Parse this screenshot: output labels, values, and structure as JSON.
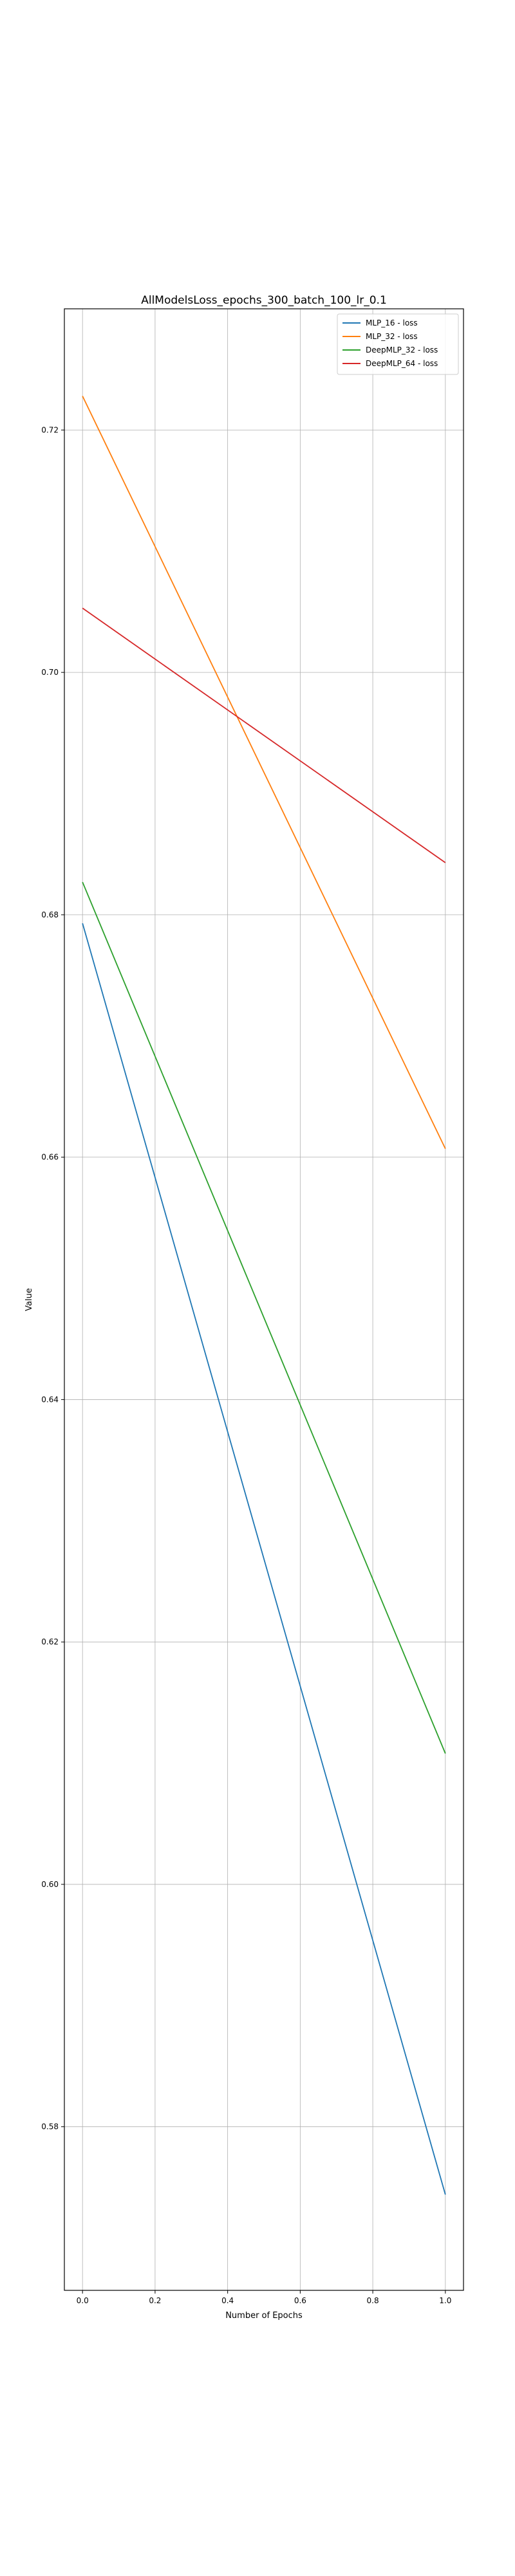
{
  "chart_data": {
    "type": "line",
    "title": "AllModelsLoss_epochs_300_batch_100_lr_0.1",
    "xlabel": "Number of Epochs",
    "ylabel": "Value",
    "x": [
      0.0,
      1.0
    ],
    "xlim": [
      -0.05,
      1.05
    ],
    "ylim": [
      0.5665,
      0.73
    ],
    "xticks": [
      "0.0",
      "0.2",
      "0.4",
      "0.6",
      "0.8",
      "1.0"
    ],
    "yticks": [
      "0.58",
      "0.60",
      "0.62",
      "0.64",
      "0.66",
      "0.68",
      "0.70",
      "0.72"
    ],
    "grid": true,
    "legend_position": "top-right",
    "series": [
      {
        "name": "MLP_16 - loss",
        "color": "#1f77b4",
        "values": [
          0.6793,
          0.5744
        ]
      },
      {
        "name": "MLP_32 - loss",
        "color": "#ff7f0e",
        "values": [
          0.7228,
          0.6607
        ]
      },
      {
        "name": "DeepMLP_32 - loss",
        "color": "#2ca02c",
        "values": [
          0.6827,
          0.6108
        ]
      },
      {
        "name": "DeepMLP_64 - loss",
        "color": "#d62728",
        "values": [
          0.7053,
          0.6843
        ]
      }
    ]
  }
}
